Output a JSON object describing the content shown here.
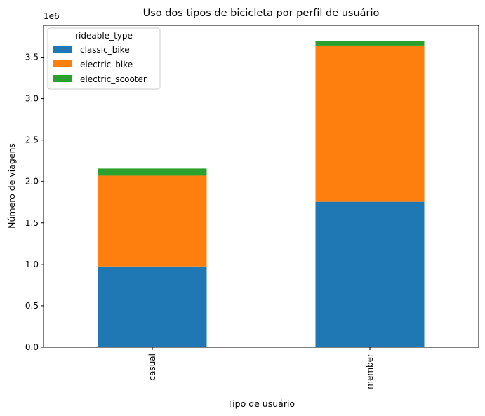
{
  "chart_data": {
    "type": "bar",
    "stacked": true,
    "title": "Uso dos tipos de bicicleta por perfil de usuário",
    "xlabel": "Tipo de usuário",
    "ylabel": "Número de viagens",
    "y_offset_label": "1e6",
    "categories": [
      "casual",
      "member"
    ],
    "ylim": [
      0,
      3.885
    ],
    "yticks": [
      "0.0",
      "0.5",
      "1.0",
      "1.5",
      "2.0",
      "2.5",
      "3.0",
      "3.5"
    ],
    "ytick_values": [
      0,
      0.5,
      1.0,
      1.5,
      2.0,
      2.5,
      3.0,
      3.5
    ],
    "unit_multiplier": 1000000,
    "legend": {
      "title": "rideable_type",
      "placement": "top-left"
    },
    "series": [
      {
        "name": "classic_bike",
        "color": "#1f77b4",
        "values": [
          0.975,
          1.755
        ]
      },
      {
        "name": "electric_bike",
        "color": "#ff7f0e",
        "values": [
          1.095,
          1.885
        ]
      },
      {
        "name": "electric_scooter",
        "color": "#2ca02c",
        "values": [
          0.085,
          0.055
        ]
      }
    ]
  }
}
